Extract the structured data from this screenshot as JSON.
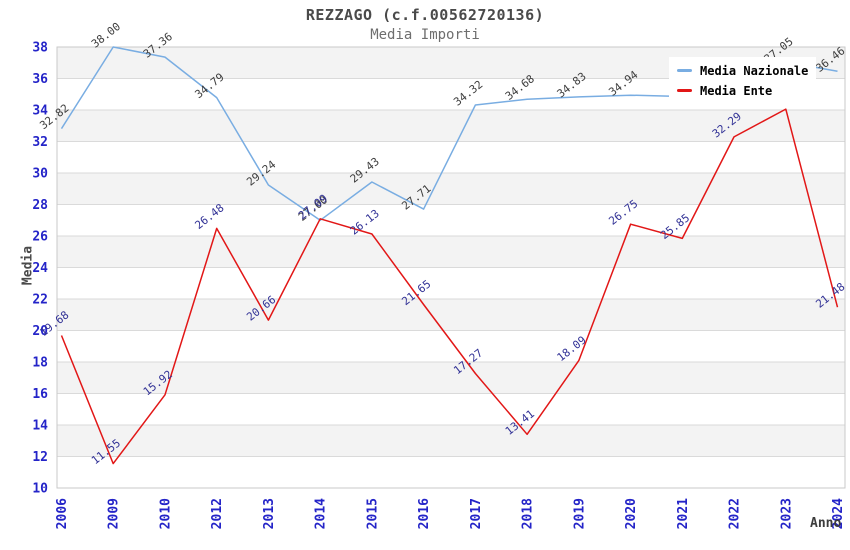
{
  "header": {
    "title": "REZZAGO (c.f.00562720136)",
    "subtitle": "Media Importi"
  },
  "legend": [
    {
      "label": "Media Nazionale",
      "color": "#79ade2"
    },
    {
      "label": "Media Ente",
      "color": "#e21717"
    }
  ],
  "colors": {
    "band_fill": "#f3f3f3",
    "gridline": "#dadada",
    "plot_border": "#c9c9c9",
    "tick_text": "#2424c8",
    "title_text": "#4a4a4a"
  },
  "chart_data": {
    "type": "line",
    "title": "REZZAGO (c.f.00562720136)",
    "subtitle": "Media Importi",
    "xlabel": "Anno",
    "ylabel": "Media",
    "ylim": [
      10,
      38
    ],
    "ytick_step": 2,
    "y_ticks": [
      "10",
      "12",
      "14",
      "16",
      "18",
      "20",
      "22",
      "24",
      "26",
      "28",
      "30",
      "32",
      "34",
      "36",
      "38"
    ],
    "grid": true,
    "alternating_bands": true,
    "legend_position": "top-right",
    "x": [
      "2006",
      "2009",
      "2010",
      "2012",
      "2013",
      "2014",
      "2015",
      "2016",
      "2017",
      "2018",
      "2019",
      "2020",
      "2021",
      "2022",
      "2023",
      "2024"
    ],
    "series": [
      {
        "name": "Media Nazionale",
        "color": "#79ade2",
        "label_color": "#3d3d3d",
        "values": [
          32.82,
          38.0,
          37.36,
          34.79,
          29.24,
          27.0,
          29.43,
          27.71,
          34.32,
          34.68,
          34.83,
          34.94,
          34.86,
          35.9,
          37.05,
          36.46
        ],
        "labels": [
          "32.82",
          "38.00",
          "37.36",
          "34.79",
          "29.24",
          "27.00",
          "29.43",
          "27.71",
          "34.32",
          "34.68",
          "34.83",
          "34.94",
          null,
          null,
          "37.05",
          "36.46"
        ]
      },
      {
        "name": "Media Ente",
        "color": "#e21717",
        "label_color": "#323296",
        "values": [
          19.68,
          11.55,
          15.92,
          26.48,
          20.66,
          27.09,
          26.13,
          21.65,
          17.27,
          13.41,
          18.09,
          26.75,
          25.85,
          32.29,
          34.06,
          21.48
        ],
        "labels": [
          "19.68",
          "11.55",
          "15.92",
          "26.48",
          "20.66",
          "27.09",
          "26.13",
          "21.65",
          "17.27",
          "13.41",
          "18.09",
          "26.75",
          "25.85",
          "32.29",
          null,
          "21.48"
        ]
      }
    ]
  }
}
